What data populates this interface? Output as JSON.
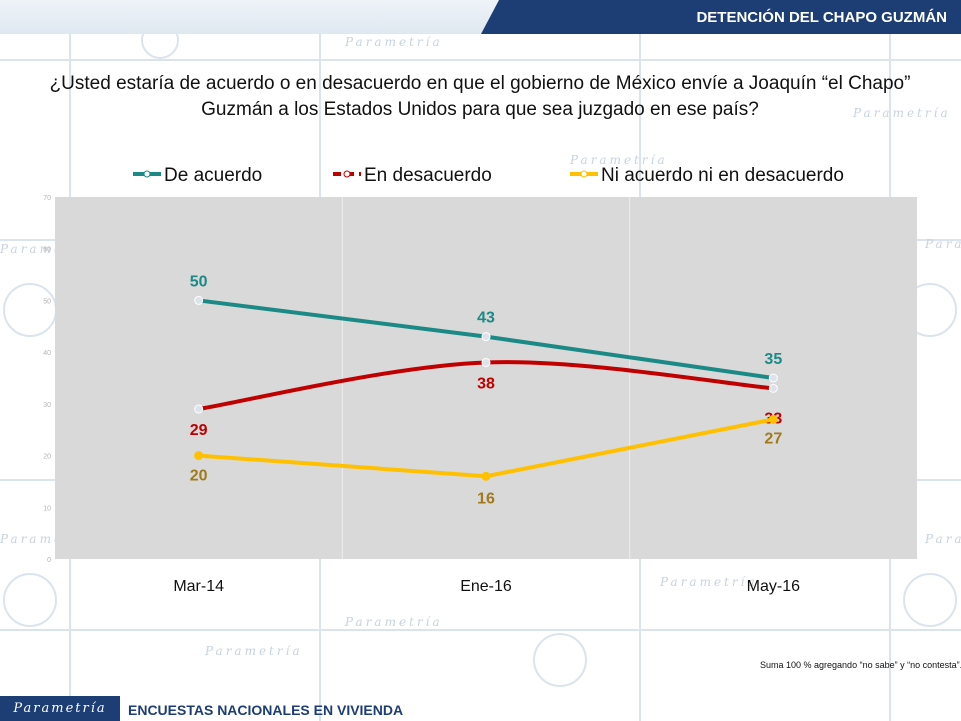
{
  "header": {
    "title": "DETENCIÓN DEL CHAPO GUZMÁN"
  },
  "question": "¿Usted estaría de acuerdo o en desacuerdo en que el gobierno de México envíe a Joaquín “el Chapo” Guzmán a los Estados Unidos para que sea juzgado en ese país?",
  "footnote": "Suma 100 %  agregando “no sabe” y “no contesta”.",
  "footer": {
    "logo": "Parametría",
    "label": "ENCUESTAS NACIONALES EN VIVIENDA"
  },
  "watermark_text": "Parametría",
  "colors": {
    "brand": "#1d3d75",
    "plot_bg": "#d9d9d9",
    "de_acuerdo": "#1b8a86",
    "en_desacuerdo": "#c00000",
    "ni_acuerdo": "#ffc000",
    "ni_acuerdo_label": "#a17a1b"
  },
  "chart_data": {
    "type": "line",
    "title": "",
    "xlabel": "",
    "ylabel": "",
    "categories": [
      "Mar-14",
      "Ene-16",
      "May-16"
    ],
    "ylim": [
      0,
      70
    ],
    "y_ticks": [
      "0",
      "10",
      "20",
      "30",
      "40",
      "50",
      "60",
      "70"
    ],
    "grid": "vertical",
    "legend": "top",
    "series": [
      {
        "name": "De acuerdo",
        "values": [
          50,
          43,
          35
        ],
        "labels": [
          "50",
          "43",
          "35"
        ],
        "color": "#1b8a86",
        "label_color": "#1b8a86",
        "smooth": false
      },
      {
        "name": "En desacuerdo",
        "values": [
          29,
          38,
          33
        ],
        "labels": [
          "29",
          "38",
          "33"
        ],
        "color": "#c00000",
        "label_color": "#c00000",
        "smooth": true
      },
      {
        "name": "Ni acuerdo ni en desacuerdo",
        "values": [
          20,
          16,
          27
        ],
        "labels": [
          "20",
          "16",
          "27"
        ],
        "color": "#ffc000",
        "label_color": "#a17a1b",
        "smooth": false
      }
    ]
  }
}
